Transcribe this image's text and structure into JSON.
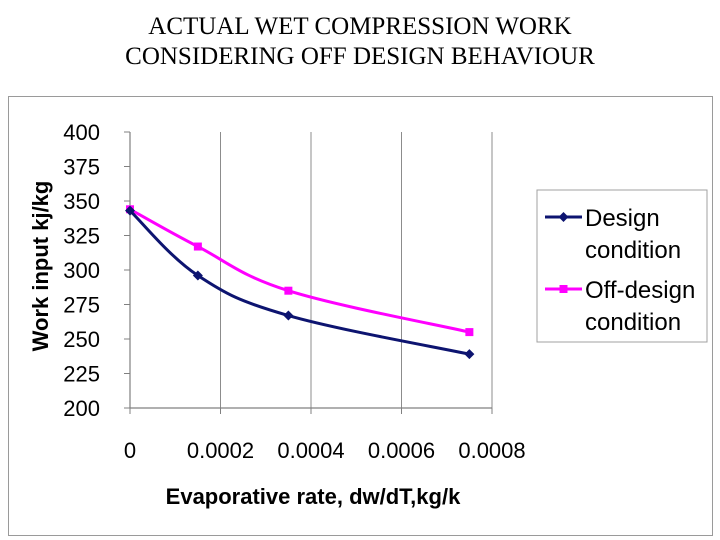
{
  "title": {
    "line1": "ACTUAL WET COMPRESSION WORK",
    "line2": "CONSIDERING OFF DESIGN BEHAVIOUR"
  },
  "chart_data": {
    "type": "line",
    "xlabel": "Evaporative rate, dw/dT,kg/k",
    "ylabel": "Work input kj/kg",
    "xlim": [
      0,
      0.0008
    ],
    "ylim": [
      200,
      400
    ],
    "x_ticks": [
      "0",
      "0.0002",
      "0.0004",
      "0.0006",
      "0.0008"
    ],
    "y_ticks": [
      "400",
      "375",
      "350",
      "325",
      "300",
      "275",
      "250",
      "225",
      "200"
    ],
    "grid": "vertical",
    "legend_position": "right",
    "series": [
      {
        "name": "Design condition",
        "name_lines": [
          "Design",
          "condition"
        ],
        "color": "#0d1470",
        "marker": "diamond",
        "x": [
          0,
          0.00015,
          0.00035,
          0.00075
        ],
        "y": [
          343,
          296,
          267,
          239
        ]
      },
      {
        "name": "Off-design condition",
        "name_lines": [
          "Off-design",
          "condition"
        ],
        "color": "#ff00ff",
        "marker": "square",
        "x": [
          0,
          0.00015,
          0.00035,
          0.00075
        ],
        "y": [
          344,
          317,
          285,
          255
        ]
      }
    ]
  }
}
